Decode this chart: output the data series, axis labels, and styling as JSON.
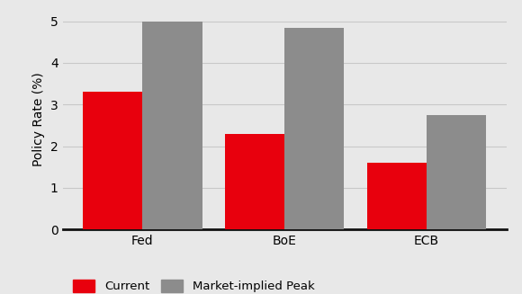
{
  "categories": [
    "Fed",
    "BoE",
    "ECB"
  ],
  "current_values": [
    3.3,
    2.3,
    1.6
  ],
  "peak_values": [
    5.0,
    4.85,
    2.75
  ],
  "current_color": "#e8000d",
  "peak_color": "#8c8c8c",
  "ylabel": "Policy Rate (%)",
  "ylim": [
    0,
    5.3
  ],
  "yticks": [
    0,
    1,
    2,
    3,
    4,
    5
  ],
  "bar_width": 0.42,
  "background_color": "#e8e8e8",
  "legend_labels": [
    "Current",
    "Market-implied Peak"
  ],
  "axis_fontsize": 10,
  "tick_fontsize": 10,
  "legend_fontsize": 9.5,
  "grid_color": "#c8c8c8",
  "bottom_spine_color": "#111111"
}
